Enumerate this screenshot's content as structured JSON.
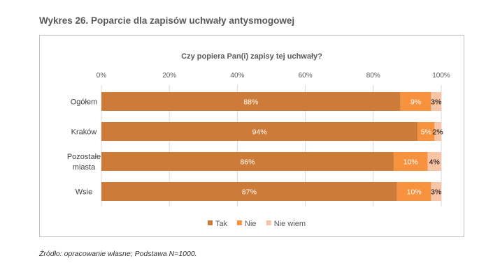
{
  "title": "Wykres 26. Poparcie dla zapisów uchwały antysmogowej",
  "footnote": "Źródło: opracowanie własne; Podstawa N=1000.",
  "chart_data": {
    "type": "bar",
    "orientation": "horizontal",
    "stacked": true,
    "title": "Czy popiera Pan(i) zapisy tej uchwały?",
    "categories": [
      [
        "Ogółem"
      ],
      [
        "Kraków"
      ],
      [
        "Pozostałe",
        "miasta"
      ],
      [
        "Wsie"
      ]
    ],
    "xlim": [
      0,
      100
    ],
    "xticks": [
      "0%",
      "20%",
      "40%",
      "60%",
      "80%",
      "100%"
    ],
    "x_axis_position": "top",
    "grid": true,
    "legend": "bottom",
    "series": [
      {
        "name": "Tak",
        "values": [
          88,
          94,
          86,
          87
        ],
        "labels": [
          "88%",
          "94%",
          "86%",
          "87%"
        ],
        "color": "#CD7B38",
        "label_color": "#ffffff"
      },
      {
        "name": "Nie",
        "values": [
          9,
          5,
          10,
          10
        ],
        "labels": [
          "9%",
          "5%",
          "10%",
          "10%"
        ],
        "color": "#F7923E",
        "label_color": "#ffffff"
      },
      {
        "name": "Nie wiem",
        "values": [
          3,
          2,
          4,
          3
        ],
        "labels": [
          "3%",
          "2%",
          "4%",
          "3%"
        ],
        "color": "#F8C4A6",
        "label_color": "#000000"
      }
    ]
  }
}
